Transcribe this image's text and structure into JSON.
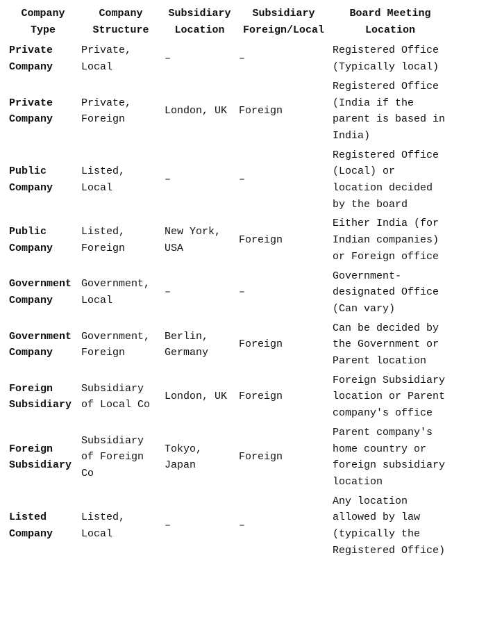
{
  "headers": [
    "Company Type",
    "Company Structure",
    "Subsidiary Location",
    "Subsidiary Foreign/Local",
    "Board Meeting Location"
  ],
  "rows": [
    [
      "Private Company",
      "Private, Local",
      "–",
      "–",
      "Registered Office (Typically local)"
    ],
    [
      "Private Company",
      "Private, Foreign",
      "London, UK",
      "Foreign",
      "Registered Office (India if the parent is based in India)"
    ],
    [
      "Public Company",
      "Listed, Local",
      "–",
      "–",
      "Registered Office (Local) or location decided by the board"
    ],
    [
      "Public Company",
      "Listed, Foreign",
      "New York, USA",
      "Foreign",
      "Either India (for Indian companies) or Foreign office"
    ],
    [
      "Government Company",
      "Government, Local",
      "–",
      "–",
      "Government-designated Office (Can vary)"
    ],
    [
      "Government Company",
      "Government, Foreign",
      "Berlin, Germany",
      "Foreign",
      "Can be decided by the Government or Parent location"
    ],
    [
      "Foreign Subsidiary",
      "Subsidiary of Local Co",
      "London, UK",
      "Foreign",
      "Foreign Subsidiary location or Parent company's office"
    ],
    [
      "Foreign Subsidiary",
      "Subsidiary of Foreign Co",
      "Tokyo, Japan",
      "Foreign",
      "Parent company's home country or foreign subsidiary location"
    ],
    [
      "Listed Company",
      "Listed, Local",
      "–",
      "–",
      "Any location allowed by law (typically the Registered Office)"
    ]
  ]
}
